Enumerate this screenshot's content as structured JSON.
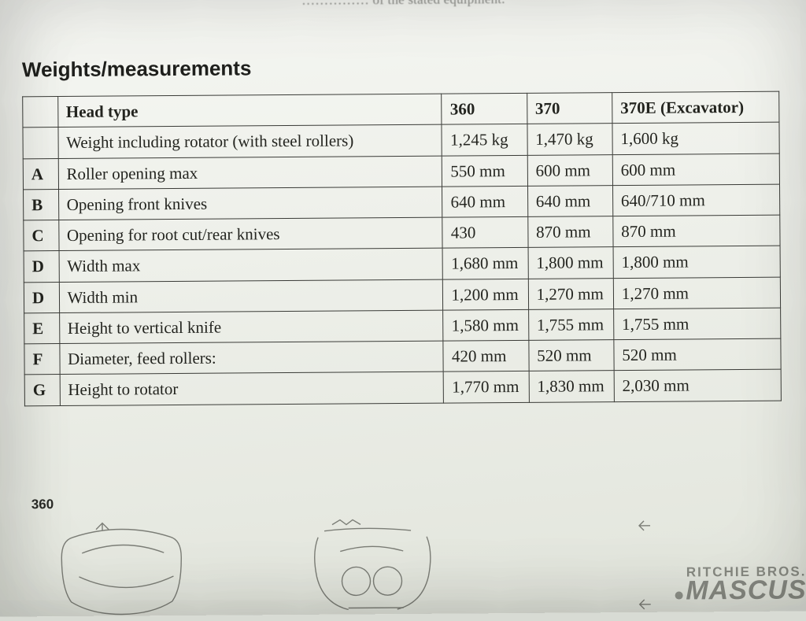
{
  "cutoff_text": "…………… of the stated equipment.",
  "section_title": "Weights/measurements",
  "model_label": "360",
  "watermark": {
    "line1": "RITCHIE BROS.",
    "line2": "MASCUS"
  },
  "table": {
    "head": {
      "label": "",
      "desc": "Head type",
      "c360": "360",
      "c370": "370",
      "c370e": "370E (Excavator)"
    },
    "rows": [
      {
        "label": "",
        "desc": "Weight including rotator (with steel rollers)",
        "c360": "1,245 kg",
        "c370": "1,470 kg",
        "c370e": "1,600 kg"
      },
      {
        "label": "A",
        "desc": "Roller opening max",
        "c360": "550 mm",
        "c370": "600 mm",
        "c370e": "600 mm"
      },
      {
        "label": "B",
        "desc": "Opening front knives",
        "c360": "640 mm",
        "c370": "640 mm",
        "c370e": "640/710 mm"
      },
      {
        "label": "C",
        "desc": "Opening for root cut/rear knives",
        "c360": "430",
        "c370": "870 mm",
        "c370e": "870 mm"
      },
      {
        "label": "D",
        "desc": "Width max",
        "c360": "1,680 mm",
        "c370": "1,800 mm",
        "c370e": "1,800 mm"
      },
      {
        "label": "D",
        "desc": "Width min",
        "c360": "1,200 mm",
        "c370": "1,270 mm",
        "c370e": "1,270 mm"
      },
      {
        "label": "E",
        "desc": "Height to vertical knife",
        "c360": "1,580 mm",
        "c370": "1,755 mm",
        "c370e": "1,755 mm"
      },
      {
        "label": "F",
        "desc": "Diameter, feed rollers:",
        "c360": "420 mm",
        "c370": "520 mm",
        "c370e": "520 mm"
      },
      {
        "label": "G",
        "desc": "Height to rotator",
        "c360": "1,770 mm",
        "c370": "1,830 mm",
        "c370e": "2,030 mm"
      }
    ]
  },
  "style": {
    "font_body": "Times New Roman",
    "font_heading": "Arial",
    "heading_fontsize_pt": 20,
    "cell_fontsize_pt": 16,
    "border_color": "#3a3b37",
    "text_color": "#23241f",
    "page_tint": "#eef0ea",
    "watermark_color": "rgba(60,62,55,0.55)"
  }
}
